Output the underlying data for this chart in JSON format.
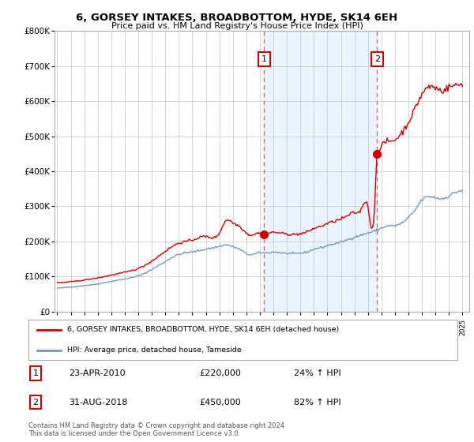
{
  "title": "6, GORSEY INTAKES, BROADBOTTOM, HYDE, SK14 6EH",
  "subtitle": "Price paid vs. HM Land Registry's House Price Index (HPI)",
  "ylim": [
    0,
    800000
  ],
  "xlim_start": 1994.8,
  "xlim_end": 2025.5,
  "legend_line1": "6, GORSEY INTAKES, BROADBOTTOM, HYDE, SK14 6EH (detached house)",
  "legend_line2": "HPI: Average price, detached house, Tameside",
  "transaction1_date": "23-APR-2010",
  "transaction1_price": "£220,000",
  "transaction1_pct": "24% ↑ HPI",
  "transaction1_year": 2010.31,
  "transaction1_value": 220000,
  "transaction2_date": "31-AUG-2018",
  "transaction2_price": "£450,000",
  "transaction2_pct": "82% ↑ HPI",
  "transaction2_year": 2018.67,
  "transaction2_value": 450000,
  "footnote": "Contains HM Land Registry data © Crown copyright and database right 2024.\nThis data is licensed under the Open Government Licence v3.0.",
  "red_color": "#cc0000",
  "blue_color": "#7799bb",
  "shade_color": "#ddeeff",
  "vline_color": "#dd4444",
  "bg_color": "#ffffff",
  "plot_bg": "#ffffff"
}
